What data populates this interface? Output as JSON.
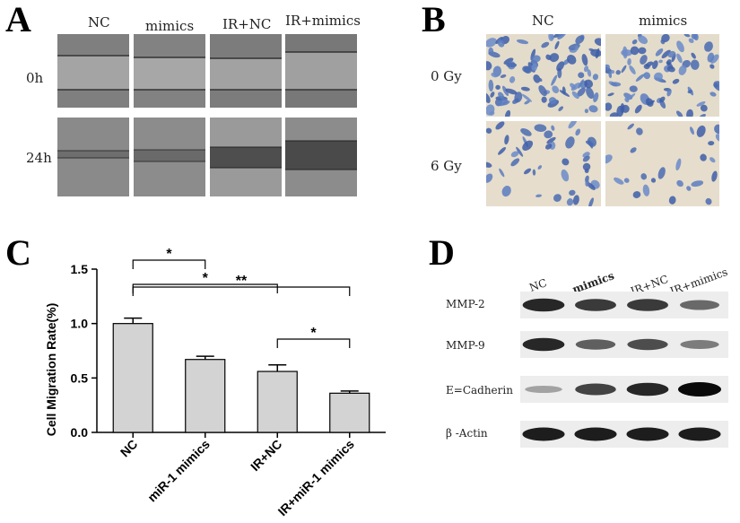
{
  "panel_a": {
    "label": "A",
    "columns": [
      "NC",
      "mimics",
      "IR+NC",
      "IR+mimics"
    ],
    "rows": [
      "0h",
      "24h"
    ]
  },
  "panel_b": {
    "label": "B",
    "columns": [
      "NC",
      "mimics"
    ],
    "rows": [
      "0 Gy",
      "6 Gy"
    ]
  },
  "panel_c": {
    "label": "C",
    "chart_data": {
      "type": "bar",
      "categories": [
        "NC",
        "miR-1 mimics",
        "IR+NC",
        "IR+miR-1 mimics"
      ],
      "values": [
        1.0,
        0.67,
        0.56,
        0.36
      ],
      "errors": [
        0.05,
        0.03,
        0.06,
        0.02
      ],
      "ylabel": "Cell Migration Rate(%)",
      "ylim": [
        0,
        1.5
      ],
      "yticks": [
        "0.0",
        "0.5",
        "1.0",
        "1.5"
      ],
      "significance": [
        {
          "from": 0,
          "to": 1,
          "label": "*"
        },
        {
          "from": 0,
          "to": 2,
          "label": "*"
        },
        {
          "from": 0,
          "to": 3,
          "label": "**"
        },
        {
          "from": 2,
          "to": 3,
          "label": "*"
        }
      ],
      "bar_color": "#d3d3d3",
      "grid": false
    }
  },
  "panel_d": {
    "label": "D",
    "columns": [
      "NC",
      "mimics",
      "IR+NC",
      "IR+mimics"
    ],
    "bands": [
      {
        "name": "MMP-2",
        "intensity": [
          0.85,
          0.75,
          0.75,
          0.5
        ]
      },
      {
        "name": "MMP-9",
        "intensity": [
          0.85,
          0.55,
          0.65,
          0.4
        ]
      },
      {
        "name": "E=Cadherin",
        "intensity": [
          0.2,
          0.7,
          0.85,
          1.0
        ]
      },
      {
        "name": "β -Actin",
        "intensity": [
          0.9,
          0.9,
          0.9,
          0.9
        ]
      }
    ]
  }
}
